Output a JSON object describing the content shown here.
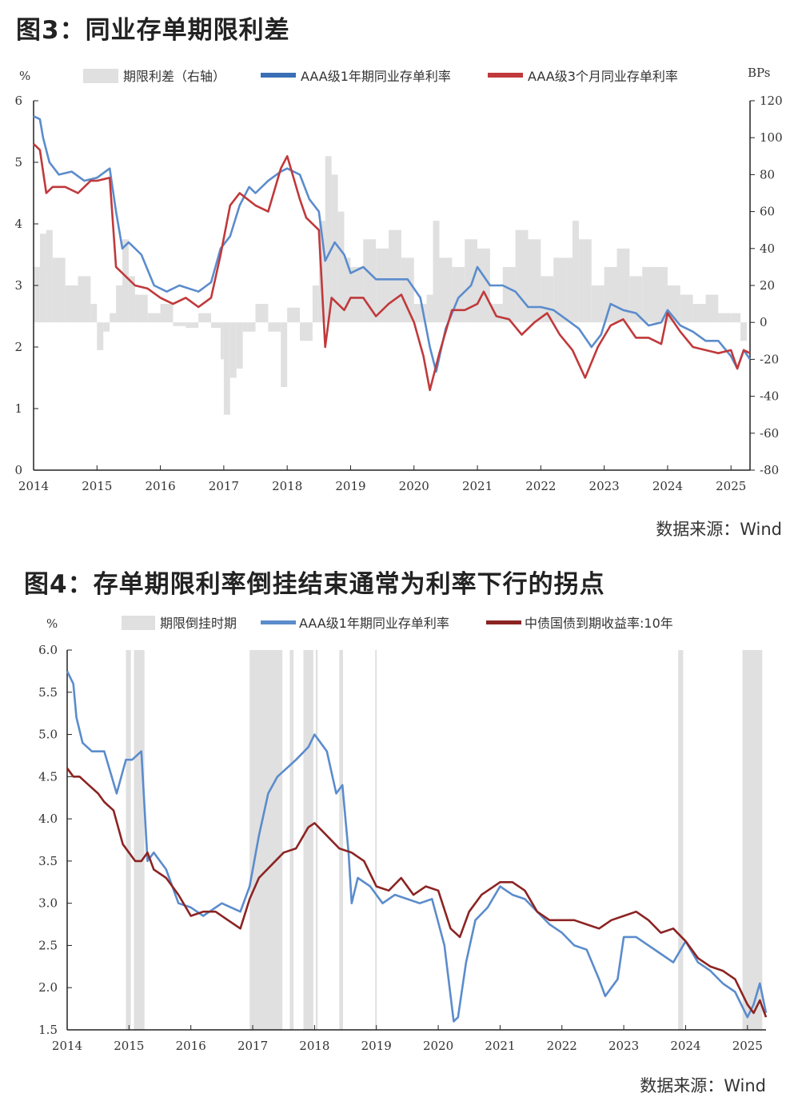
{
  "figure1": {
    "title": "图3：同业存单期限利差",
    "source": "数据来源：Wind",
    "left_unit": "%",
    "right_unit": "BPs",
    "legend": [
      "期限利差（右轴）",
      "AAA级1年期同业存单利率",
      "AAA级3个月同业存单利率"
    ]
  },
  "figure2": {
    "title": "图4：存单期限利率倒挂结束通常为利率下行的拐点",
    "source": "数据来源：Wind",
    "left_unit": "%",
    "legend": [
      "期限倒挂时期",
      "AAA级1年期同业存单利率",
      "中债国债到期收益率:10年"
    ]
  },
  "colors": {
    "blue": "#3a6fb5",
    "blue2": "#5b8ccc",
    "red": "#c0393b",
    "darkred": "#8b2423",
    "gray": "#e0e0e0"
  },
  "chart_data": [
    {
      "type": "line",
      "title": "图3：同业存单期限利差",
      "x_ticks": [
        "2014",
        "2015",
        "2016",
        "2017",
        "2018",
        "2019",
        "2020",
        "2021",
        "2022",
        "2023",
        "2024",
        "2025"
      ],
      "xlim": [
        2014,
        2025.3
      ],
      "ylim": [
        0,
        6
      ],
      "y_ticks": [
        "0",
        "1",
        "2",
        "3",
        "4",
        "5",
        "6"
      ],
      "y2lim": [
        -80,
        120
      ],
      "y2_ticks": [
        "-80",
        "-60",
        "-40",
        "-20",
        "0",
        "20",
        "40",
        "60",
        "80",
        "100",
        "120"
      ],
      "series": [
        {
          "name": "期限利差（右轴）",
          "kind": "area",
          "axis": "right",
          "x": [
            2014.0,
            2014.1,
            2014.2,
            2014.3,
            2014.5,
            2014.7,
            2014.9,
            2015.0,
            2015.1,
            2015.2,
            2015.3,
            2015.4,
            2015.5,
            2015.6,
            2015.8,
            2016.0,
            2016.2,
            2016.4,
            2016.6,
            2016.8,
            2016.95,
            2017.0,
            2017.1,
            2017.2,
            2017.3,
            2017.5,
            2017.7,
            2017.9,
            2018.0,
            2018.2,
            2018.4,
            2018.5,
            2018.6,
            2018.7,
            2018.8,
            2018.9,
            2019.0,
            2019.2,
            2019.4,
            2019.6,
            2019.8,
            2020.0,
            2020.2,
            2020.3,
            2020.4,
            2020.6,
            2020.8,
            2021.0,
            2021.2,
            2021.4,
            2021.6,
            2021.8,
            2022.0,
            2022.2,
            2022.4,
            2022.5,
            2022.6,
            2022.8,
            2023.0,
            2023.2,
            2023.4,
            2023.6,
            2023.8,
            2024.0,
            2024.2,
            2024.4,
            2024.6,
            2024.8,
            2025.0,
            2025.15,
            2025.25
          ],
          "values": [
            30,
            48,
            50,
            35,
            20,
            25,
            10,
            -15,
            -5,
            5,
            20,
            45,
            25,
            15,
            5,
            10,
            -2,
            -3,
            5,
            -3,
            -20,
            -50,
            -30,
            -25,
            -5,
            10,
            -5,
            -35,
            8,
            -10,
            20,
            55,
            90,
            80,
            60,
            35,
            30,
            45,
            40,
            50,
            35,
            10,
            15,
            55,
            35,
            30,
            45,
            40,
            10,
            30,
            50,
            45,
            25,
            35,
            35,
            55,
            45,
            20,
            30,
            40,
            25,
            30,
            30,
            20,
            15,
            10,
            15,
            5,
            5,
            -10,
            0
          ]
        },
        {
          "name": "AAA级1年期同业存单利率",
          "axis": "left",
          "x": [
            2014.0,
            2014.1,
            2014.15,
            2014.25,
            2014.4,
            2014.6,
            2014.8,
            2015.0,
            2015.2,
            2015.3,
            2015.4,
            2015.5,
            2015.7,
            2015.9,
            2016.1,
            2016.3,
            2016.6,
            2016.8,
            2016.95,
            2017.1,
            2017.25,
            2017.4,
            2017.5,
            2017.7,
            2017.9,
            2018.0,
            2018.2,
            2018.35,
            2018.5,
            2018.6,
            2018.75,
            2018.9,
            2019.0,
            2019.2,
            2019.4,
            2019.6,
            2019.9,
            2020.1,
            2020.25,
            2020.35,
            2020.5,
            2020.7,
            2020.9,
            2021.0,
            2021.2,
            2021.4,
            2021.6,
            2021.8,
            2022.0,
            2022.2,
            2022.4,
            2022.6,
            2022.8,
            2022.95,
            2023.1,
            2023.3,
            2023.5,
            2023.7,
            2023.9,
            2024.0,
            2024.2,
            2024.4,
            2024.6,
            2024.8,
            2025.0,
            2025.1,
            2025.2,
            2025.3
          ],
          "values": [
            5.75,
            5.7,
            5.4,
            5.0,
            4.8,
            4.85,
            4.7,
            4.75,
            4.9,
            4.2,
            3.6,
            3.7,
            3.5,
            3.0,
            2.9,
            3.0,
            2.9,
            3.05,
            3.6,
            3.8,
            4.3,
            4.6,
            4.5,
            4.7,
            4.85,
            4.9,
            4.8,
            4.4,
            4.2,
            3.4,
            3.7,
            3.5,
            3.2,
            3.3,
            3.1,
            3.1,
            3.1,
            2.8,
            2.0,
            1.6,
            2.3,
            2.8,
            3.0,
            3.3,
            3.0,
            3.0,
            2.9,
            2.65,
            2.65,
            2.6,
            2.45,
            2.3,
            2.0,
            2.2,
            2.7,
            2.6,
            2.55,
            2.35,
            2.4,
            2.6,
            2.35,
            2.25,
            2.1,
            2.1,
            1.85,
            1.65,
            1.95,
            1.8
          ]
        },
        {
          "name": "AAA级3个月同业存单利率",
          "axis": "left",
          "x": [
            2014.0,
            2014.1,
            2014.2,
            2014.3,
            2014.5,
            2014.7,
            2014.9,
            2015.0,
            2015.2,
            2015.3,
            2015.4,
            2015.6,
            2015.8,
            2016.0,
            2016.2,
            2016.4,
            2016.6,
            2016.8,
            2016.95,
            2017.1,
            2017.25,
            2017.5,
            2017.7,
            2017.9,
            2018.0,
            2018.2,
            2018.3,
            2018.5,
            2018.6,
            2018.7,
            2018.9,
            2019.0,
            2019.2,
            2019.4,
            2019.6,
            2019.8,
            2020.0,
            2020.15,
            2020.25,
            2020.4,
            2020.6,
            2020.8,
            2021.0,
            2021.1,
            2021.3,
            2021.5,
            2021.7,
            2021.9,
            2022.1,
            2022.3,
            2022.5,
            2022.7,
            2022.9,
            2023.1,
            2023.3,
            2023.5,
            2023.7,
            2023.9,
            2024.0,
            2024.2,
            2024.4,
            2024.6,
            2024.8,
            2025.0,
            2025.1,
            2025.2,
            2025.3
          ],
          "values": [
            5.3,
            5.2,
            4.5,
            4.6,
            4.6,
            4.5,
            4.7,
            4.7,
            4.75,
            3.3,
            3.2,
            3.0,
            2.95,
            2.8,
            2.7,
            2.8,
            2.65,
            2.8,
            3.5,
            4.3,
            4.5,
            4.3,
            4.2,
            4.9,
            5.1,
            4.4,
            4.1,
            3.9,
            2.0,
            2.8,
            2.6,
            2.8,
            2.8,
            2.5,
            2.7,
            2.85,
            2.4,
            1.85,
            1.3,
            1.9,
            2.6,
            2.6,
            2.7,
            2.9,
            2.5,
            2.45,
            2.2,
            2.4,
            2.55,
            2.2,
            1.95,
            1.5,
            2.0,
            2.35,
            2.45,
            2.15,
            2.15,
            2.05,
            2.55,
            2.25,
            2.0,
            1.95,
            1.9,
            1.95,
            1.65,
            1.95,
            1.9
          ]
        }
      ]
    },
    {
      "type": "line",
      "title": "图4：存单期限利率倒挂结束通常为利率下行的拐点",
      "x_ticks": [
        "2014",
        "2015",
        "2016",
        "2017",
        "2018",
        "2019",
        "2020",
        "2021",
        "2022",
        "2023",
        "2024",
        "2025"
      ],
      "xlim": [
        2014,
        2025.3
      ],
      "ylim": [
        1.5,
        6.0
      ],
      "y_ticks": [
        "1.5",
        "2.0",
        "2.5",
        "3.0",
        "3.5",
        "4.0",
        "4.5",
        "5.0",
        "5.5",
        "6.0"
      ],
      "shaded_periods": [
        [
          2014.95,
          2015.03
        ],
        [
          2015.08,
          2015.25
        ],
        [
          2016.95,
          2017.48
        ],
        [
          2017.6,
          2017.66
        ],
        [
          2017.82,
          2017.98
        ],
        [
          2018.02,
          2018.05
        ],
        [
          2018.4,
          2018.46
        ],
        [
          2018.98,
          2019.0
        ],
        [
          2023.88,
          2023.96
        ],
        [
          2024.92,
          2025.24
        ]
      ],
      "series": [
        {
          "name": "AAA级1年期同业存单利率",
          "x": [
            2014.0,
            2014.1,
            2014.15,
            2014.25,
            2014.4,
            2014.6,
            2014.8,
            2014.95,
            2015.05,
            2015.2,
            2015.3,
            2015.4,
            2015.6,
            2015.8,
            2016.0,
            2016.2,
            2016.5,
            2016.8,
            2016.95,
            2017.1,
            2017.25,
            2017.4,
            2017.55,
            2017.7,
            2017.9,
            2018.0,
            2018.2,
            2018.35,
            2018.45,
            2018.55,
            2018.6,
            2018.7,
            2018.9,
            2019.1,
            2019.3,
            2019.5,
            2019.7,
            2019.9,
            2020.1,
            2020.25,
            2020.32,
            2020.45,
            2020.6,
            2020.8,
            2021.0,
            2021.2,
            2021.4,
            2021.6,
            2021.8,
            2022.0,
            2022.2,
            2022.4,
            2022.6,
            2022.7,
            2022.9,
            2023.0,
            2023.2,
            2023.4,
            2023.6,
            2023.8,
            2024.0,
            2024.2,
            2024.4,
            2024.6,
            2024.8,
            2025.0,
            2025.1,
            2025.2,
            2025.3
          ],
          "values": [
            5.75,
            5.6,
            5.2,
            4.9,
            4.8,
            4.8,
            4.3,
            4.7,
            4.7,
            4.8,
            3.5,
            3.6,
            3.4,
            3.0,
            2.95,
            2.85,
            3.0,
            2.9,
            3.2,
            3.8,
            4.3,
            4.5,
            4.6,
            4.7,
            4.85,
            5.0,
            4.8,
            4.3,
            4.4,
            3.6,
            3.0,
            3.3,
            3.2,
            3.0,
            3.1,
            3.05,
            3.0,
            3.05,
            2.5,
            1.6,
            1.65,
            2.3,
            2.8,
            2.95,
            3.2,
            3.1,
            3.05,
            2.9,
            2.75,
            2.65,
            2.5,
            2.45,
            2.1,
            1.9,
            2.1,
            2.6,
            2.6,
            2.5,
            2.4,
            2.3,
            2.55,
            2.3,
            2.2,
            2.05,
            1.95,
            1.65,
            1.8,
            2.05,
            1.7
          ]
        },
        {
          "name": "中债国债到期收益率:10年",
          "x": [
            2014.0,
            2014.1,
            2014.2,
            2014.35,
            2014.5,
            2014.6,
            2014.75,
            2014.9,
            2015.0,
            2015.1,
            2015.2,
            2015.3,
            2015.4,
            2015.6,
            2015.8,
            2016.0,
            2016.2,
            2016.4,
            2016.6,
            2016.8,
            2016.95,
            2017.1,
            2017.3,
            2017.5,
            2017.7,
            2017.9,
            2018.0,
            2018.2,
            2018.4,
            2018.6,
            2018.8,
            2019.0,
            2019.2,
            2019.4,
            2019.6,
            2019.8,
            2020.0,
            2020.2,
            2020.35,
            2020.5,
            2020.7,
            2020.9,
            2021.0,
            2021.2,
            2021.4,
            2021.6,
            2021.8,
            2022.0,
            2022.2,
            2022.4,
            2022.6,
            2022.8,
            2023.0,
            2023.2,
            2023.4,
            2023.6,
            2023.8,
            2024.0,
            2024.2,
            2024.4,
            2024.6,
            2024.8,
            2025.0,
            2025.1,
            2025.2,
            2025.3
          ],
          "values": [
            4.6,
            4.5,
            4.5,
            4.4,
            4.3,
            4.2,
            4.1,
            3.7,
            3.6,
            3.5,
            3.5,
            3.6,
            3.4,
            3.3,
            3.1,
            2.85,
            2.9,
            2.9,
            2.8,
            2.7,
            3.05,
            3.3,
            3.45,
            3.6,
            3.65,
            3.9,
            3.95,
            3.8,
            3.65,
            3.6,
            3.5,
            3.2,
            3.15,
            3.3,
            3.1,
            3.2,
            3.15,
            2.7,
            2.6,
            2.9,
            3.1,
            3.2,
            3.25,
            3.25,
            3.15,
            2.9,
            2.8,
            2.8,
            2.8,
            2.75,
            2.7,
            2.8,
            2.85,
            2.9,
            2.8,
            2.65,
            2.7,
            2.55,
            2.35,
            2.25,
            2.2,
            2.1,
            1.8,
            1.7,
            1.85,
            1.65
          ]
        }
      ]
    }
  ]
}
